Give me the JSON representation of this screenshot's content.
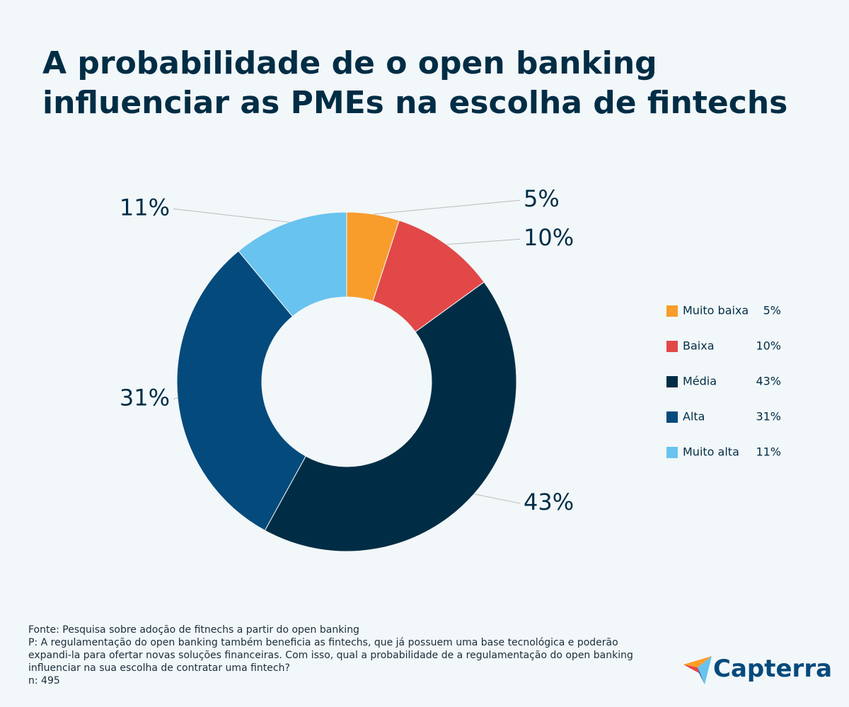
{
  "chart_data": {
    "type": "donut",
    "title": "A probabilidade de o open banking influenciar as PMEs na escolha de fintechs",
    "categories": [
      "Muito baixa",
      "Baixa",
      "Média",
      "Alta",
      "Muito alta"
    ],
    "values": [
      5,
      10,
      43,
      31,
      11
    ],
    "value_labels": [
      "5%",
      "10%",
      "43%",
      "31%",
      "11%"
    ],
    "colors": [
      "#f89c2c",
      "#e24848",
      "#002d45",
      "#044a7c",
      "#68c3ee"
    ],
    "legend": "right"
  },
  "footer": {
    "source": "Fonte: Pesquisa sobre adoção de fitnechs a partir do open banking",
    "question": "P: A regulamentação do open banking também beneficia as fintechs, que já possuem uma base tecnológica e poderão expandi-la para ofertar novas soluções financeiras. Com isso, qual a probabilidade de a regulamentação do open banking influenciar na sua escolha de contratar uma fintech?",
    "n": "n: 495",
    "brand": "Capterra"
  }
}
